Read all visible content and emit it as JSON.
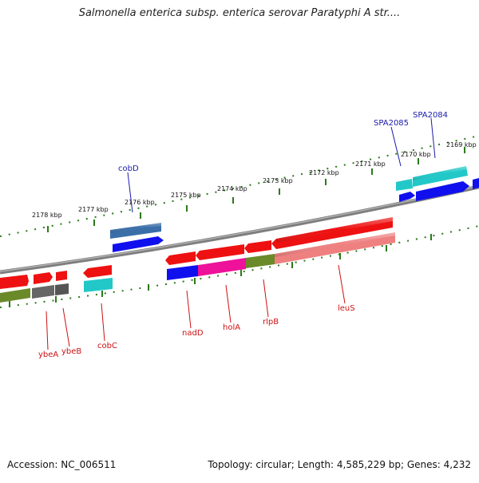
{
  "title": "Salmonella enterica subsp. enterica serovar Paratyphi A str....",
  "footer": {
    "accession": "Accession: NC_006511",
    "topology": "Topology: circular; Length: 4,585,229 bp; Genes: 4,232"
  },
  "ticks": [
    "2178 kbp",
    "2177 kbp",
    "2176 kbp",
    "2175 kbp",
    "2174 kbp",
    "2173 kbp",
    "2172 kbp",
    "2171 kbp",
    "2170 kbp",
    "2169 kbp"
  ],
  "gene_labels": {
    "outer": [
      "cobD",
      "SPA2085",
      "SPA2084"
    ],
    "inner": [
      "ybeA",
      "ybeB",
      "cobC",
      "nadD",
      "holA",
      "rlpB",
      "leuS"
    ]
  },
  "colors": {
    "outer_label": "#1a1aaa",
    "inner_label": "#cc1111",
    "tick_green": "#2a7a1a",
    "backbone": "#808080",
    "red": "#ee1111",
    "blue": "#1010ee",
    "cyan": "#22c8c8",
    "steelblue": "#3a6ea8",
    "olive": "#6a8a2a",
    "grey": "#666666",
    "magenta": "#ee1199",
    "salmon": "#ee8080"
  }
}
